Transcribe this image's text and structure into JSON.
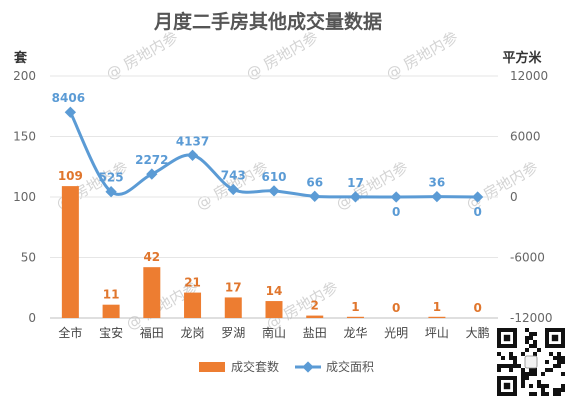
{
  "chart_data": {
    "type": "bar",
    "title": "月度二手房其他成交量数据",
    "left_axis_unit": "套",
    "right_axis_unit": "平方米",
    "categories": [
      "全市",
      "宝安",
      "福田",
      "龙岗",
      "罗湖",
      "南山",
      "盐田",
      "龙华",
      "光明",
      "坪山",
      "大鹏"
    ],
    "left_ticks": [
      "0",
      "50",
      "100",
      "150",
      "200"
    ],
    "right_ticks": [
      "-12000",
      "-6000",
      "0",
      "6000",
      "12000"
    ],
    "y_left_lim": [
      0,
      200
    ],
    "y_right_lim": [
      -12000,
      12000
    ],
    "series": [
      {
        "name": "成交套数",
        "kind": "bar",
        "color": "#ED7D31",
        "values": [
          109,
          11,
          42,
          21,
          17,
          14,
          2,
          1,
          0,
          1,
          0
        ],
        "labels": [
          "109",
          "11",
          "42",
          "21",
          "17",
          "14",
          "2",
          "1",
          "0",
          "1",
          "0"
        ]
      },
      {
        "name": "成交面积",
        "kind": "line",
        "axis": "right",
        "color": "#5B9BD5",
        "values": [
          8406,
          525,
          2272,
          4137,
          743,
          610,
          66,
          17,
          0,
          36,
          0
        ],
        "labels": [
          "8406",
          "525",
          "2272",
          "4137",
          "743",
          "610",
          "66",
          "17",
          "0",
          "36",
          "0"
        ]
      }
    ],
    "grid": true,
    "legend": "bottom"
  },
  "watermark": "房地内参"
}
